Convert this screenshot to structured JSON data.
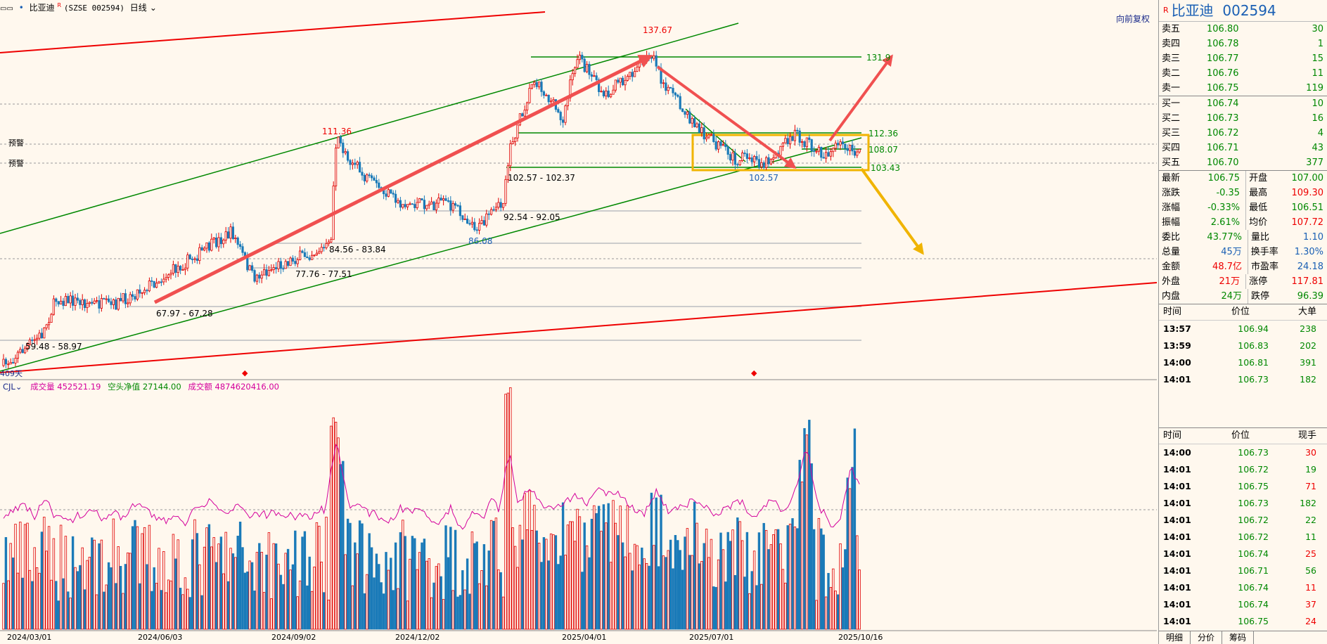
{
  "topbar": {
    "menu_icon": "menu-icon",
    "title": "比亚迪",
    "superscript": "R",
    "code": "(SZSE 002594)",
    "period": "日线"
  },
  "chart": {
    "adj_label": "向前复权",
    "alert_label_1": "预警",
    "alert_label_2": "预警",
    "days_label": "409天",
    "price_labels": {
      "high_peak": "137.67",
      "mid_peak": "111.36",
      "target_top": "131.9",
      "res_1": "112.36",
      "mid_line": "108.07",
      "support": "103.43",
      "low_a": "102.57",
      "low_b": "86.08",
      "zone_1": "102.57 - 102.37",
      "zone_2": "92.54 - 92.05",
      "zone_3": "84.56 - 83.84",
      "zone_4": "77.76 - 77.51",
      "zone_5": "67.97 - 67.28",
      "zone_6": "59.48 - 58.97"
    },
    "x_axis": [
      "2024/03/01",
      "2024/06/03",
      "2024/09/02",
      "2024/12/02",
      "2025/04/01",
      "2025/07/01",
      "2025/10/16"
    ]
  },
  "indicator": {
    "name": "CJL",
    "vol_label": "成交量",
    "vol_value": "452521.19",
    "short_label": "空头净值",
    "short_value": "27144.00",
    "amount_label": "成交额",
    "amount_value": "4874620416.00"
  },
  "colors": {
    "up": "#e00000",
    "down": "#1a7ab8",
    "green": "#008000",
    "gold": "#f0b400",
    "magenta": "#d4009c"
  },
  "quote": {
    "flag": "R",
    "name": "比亚迪",
    "code": "002594",
    "asks": [
      {
        "label": "卖五",
        "price": "106.80",
        "vol": "30"
      },
      {
        "label": "卖四",
        "price": "106.78",
        "vol": "1"
      },
      {
        "label": "卖三",
        "price": "106.77",
        "vol": "15"
      },
      {
        "label": "卖二",
        "price": "106.76",
        "vol": "11"
      },
      {
        "label": "卖一",
        "price": "106.75",
        "vol": "119"
      }
    ],
    "bids": [
      {
        "label": "买一",
        "price": "106.74",
        "vol": "10"
      },
      {
        "label": "买二",
        "price": "106.73",
        "vol": "16"
      },
      {
        "label": "买三",
        "price": "106.72",
        "vol": "4"
      },
      {
        "label": "买四",
        "price": "106.71",
        "vol": "43"
      },
      {
        "label": "买五",
        "price": "106.70",
        "vol": "377"
      }
    ],
    "stats": [
      {
        "a": "最新",
        "b": "106.75",
        "bc": "grn",
        "c": "开盘",
        "d": "107.00",
        "dc": "grn"
      },
      {
        "a": "涨跌",
        "b": "-0.35",
        "bc": "grn",
        "c": "最高",
        "d": "109.30",
        "dc": "red"
      },
      {
        "a": "涨幅",
        "b": "-0.33%",
        "bc": "grn",
        "c": "最低",
        "d": "106.51",
        "dc": "grn"
      },
      {
        "a": "振幅",
        "b": "2.61%",
        "bc": "grn",
        "c": "均价",
        "d": "107.72",
        "dc": "red"
      },
      {
        "a": "委比",
        "b": "43.77%",
        "bc": "grn",
        "c": "量比",
        "d": "1.10",
        "dc": "blu"
      },
      {
        "a": "总量",
        "b": "45万",
        "bc": "blu",
        "c": "换手率",
        "d": "1.30%",
        "dc": "blu"
      },
      {
        "a": "金额",
        "b": "48.7亿",
        "bc": "red",
        "c": "市盈率",
        "d": "24.18",
        "dc": "blu"
      },
      {
        "a": "外盘",
        "b": "21万",
        "bc": "red",
        "c": "涨停",
        "d": "117.81",
        "dc": "red"
      },
      {
        "a": "内盘",
        "b": "24万",
        "bc": "grn",
        "c": "跌停",
        "d": "96.39",
        "dc": "grn"
      }
    ],
    "big_head": {
      "time": "时间",
      "price": "价位",
      "vol": "大单"
    },
    "big_orders": [
      {
        "time": "13:57",
        "price": "106.94",
        "vol": "238"
      },
      {
        "time": "13:59",
        "price": "106.83",
        "vol": "202"
      },
      {
        "time": "14:00",
        "price": "106.81",
        "vol": "391"
      },
      {
        "time": "14:01",
        "price": "106.73",
        "vol": "182"
      }
    ],
    "tick_head": {
      "time": "时间",
      "price": "价位",
      "vol": "现手"
    },
    "ticks": [
      {
        "time": "14:00",
        "price": "106.73",
        "vol": "30",
        "vc": "red"
      },
      {
        "time": "14:01",
        "price": "106.72",
        "vol": "19",
        "vc": "grn"
      },
      {
        "time": "14:01",
        "price": "106.75",
        "vol": "71",
        "vc": "red"
      },
      {
        "time": "14:01",
        "price": "106.73",
        "vol": "182",
        "vc": "grn"
      },
      {
        "time": "14:01",
        "price": "106.72",
        "vol": "22",
        "vc": "grn"
      },
      {
        "time": "14:01",
        "price": "106.72",
        "vol": "11",
        "vc": "grn"
      },
      {
        "time": "14:01",
        "price": "106.74",
        "vol": "25",
        "vc": "red"
      },
      {
        "time": "14:01",
        "price": "106.71",
        "vol": "56",
        "vc": "grn"
      },
      {
        "time": "14:01",
        "price": "106.74",
        "vol": "11",
        "vc": "red"
      },
      {
        "time": "14:01",
        "price": "106.74",
        "vol": "37",
        "vc": "red"
      },
      {
        "time": "14:01",
        "price": "106.75",
        "vol": "24",
        "vc": "red"
      }
    ],
    "tabs": [
      "明细",
      "分价",
      "筹码"
    ]
  }
}
